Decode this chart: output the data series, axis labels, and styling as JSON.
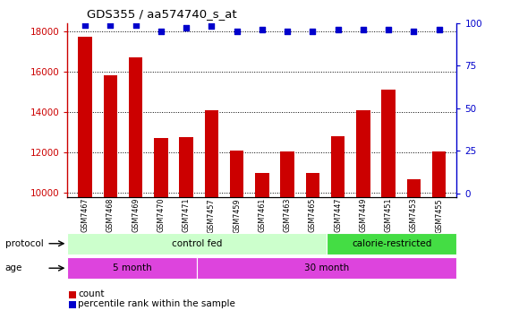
{
  "title": "GDS355 / aa574740_s_at",
  "samples": [
    "GSM7467",
    "GSM7468",
    "GSM7469",
    "GSM7470",
    "GSM7471",
    "GSM7457",
    "GSM7459",
    "GSM7461",
    "GSM7463",
    "GSM7465",
    "GSM7447",
    "GSM7449",
    "GSM7451",
    "GSM7453",
    "GSM7455"
  ],
  "counts": [
    17700,
    15800,
    16700,
    12700,
    12750,
    14100,
    12100,
    11000,
    12050,
    11000,
    12800,
    14100,
    15100,
    10650,
    12050
  ],
  "percentiles": [
    99,
    99,
    99,
    95,
    97,
    98,
    95,
    96,
    95,
    95,
    96,
    96,
    96,
    95,
    96
  ],
  "bar_color": "#cc0000",
  "dot_color": "#0000cc",
  "ylim_left": [
    9800,
    18400
  ],
  "ylim_right": [
    -2,
    100
  ],
  "yticks_left": [
    10000,
    12000,
    14000,
    16000,
    18000
  ],
  "yticks_right": [
    0,
    25,
    50,
    75,
    100
  ],
  "plot_bg": "#ffffff",
  "protocol_colors": {
    "control fed": "#ccffcc",
    "calorie-restricted": "#44dd44"
  },
  "age_color": "#dd44dd",
  "legend_count_color": "#cc0000",
  "legend_dot_color": "#0000cc",
  "cf_samples": 10,
  "cr_samples": 5,
  "age5_samples": 5,
  "age30_samples": 10
}
